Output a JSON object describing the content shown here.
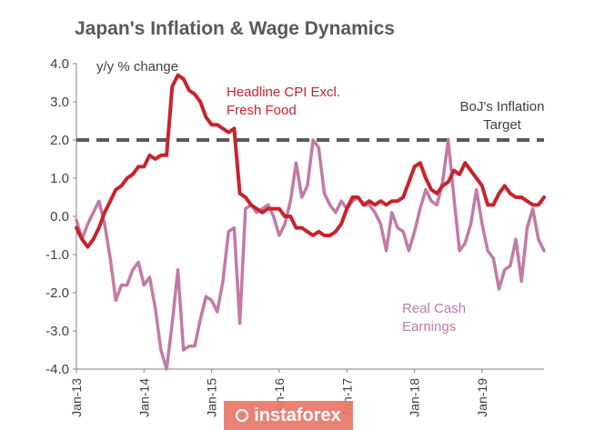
{
  "watermark": {
    "text": "instaforex",
    "icon": "instaforex-logo-icon"
  },
  "chart_data": {
    "type": "line",
    "title": "Japan's Inflation & Wage Dynamics",
    "ylabel": "y/y % change",
    "ylim": [
      -4.0,
      4.0
    ],
    "yticks": [
      -4.0,
      -3.0,
      -2.0,
      -1.0,
      0.0,
      1.0,
      2.0,
      3.0,
      4.0
    ],
    "ytick_labels": [
      "-4.0",
      "-3.0",
      "-2.0",
      "-1.0",
      "0.0",
      "1.0",
      "2.0",
      "3.0",
      "4.0"
    ],
    "xlim": [
      0,
      83
    ],
    "x_ticks": [
      {
        "label": "Jan-13",
        "index": 0
      },
      {
        "label": "Jan-14",
        "index": 12
      },
      {
        "label": "Jan-15",
        "index": 24
      },
      {
        "label": "Jan-16",
        "index": 36
      },
      {
        "label": "Jan-17",
        "index": 48
      },
      {
        "label": "Jan-18",
        "index": 60
      },
      {
        "label": "Jan-19",
        "index": 72
      }
    ],
    "reference_lines": [
      {
        "name": "BoJ's Inflation Target",
        "value": 2.0,
        "color": "#595959",
        "style": "dashed"
      }
    ],
    "annotations": [
      {
        "text": "BoJ's Inflation",
        "for": "BoJ's Inflation Target"
      },
      {
        "text": "Target",
        "for": "BoJ's Inflation Target"
      },
      {
        "text": "Headline CPI Excl.",
        "for": "Headline CPI Excl. Fresh Food"
      },
      {
        "text": "Fresh Food",
        "for": "Headline CPI Excl. Fresh Food"
      },
      {
        "text": "Real Cash",
        "for": "Real Cash Earnings"
      },
      {
        "text": "Earnings",
        "for": "Real Cash Earnings"
      }
    ],
    "series": [
      {
        "name": "Headline CPI Excl. Fresh Food",
        "color": "#c8232c",
        "values": [
          -0.3,
          -0.6,
          -0.8,
          -0.6,
          -0.3,
          0.1,
          0.4,
          0.7,
          0.8,
          1.0,
          1.1,
          1.3,
          1.3,
          1.6,
          1.5,
          1.6,
          1.6,
          3.4,
          3.7,
          3.6,
          3.3,
          3.2,
          3.0,
          2.6,
          2.4,
          2.4,
          2.3,
          2.2,
          2.3,
          0.6,
          0.5,
          0.3,
          0.2,
          0.1,
          0.2,
          0.2,
          0.2,
          0.0,
          0.0,
          -0.3,
          -0.3,
          -0.4,
          -0.5,
          -0.4,
          -0.5,
          -0.5,
          -0.4,
          -0.2,
          0.2,
          0.5,
          0.5,
          0.3,
          0.4,
          0.3,
          0.4,
          0.3,
          0.4,
          0.4,
          0.5,
          0.9,
          1.3,
          1.4,
          1.0,
          0.7,
          0.6,
          0.8,
          0.9,
          1.2,
          1.1,
          1.4,
          1.2,
          1.0,
          0.8,
          0.3,
          0.3,
          0.6,
          0.8,
          0.6,
          0.5,
          0.5,
          0.4,
          0.3,
          0.3,
          0.5
        ]
      },
      {
        "name": "Real Cash Earnings",
        "color": "#c27aa6",
        "values": [
          -0.1,
          -0.6,
          -0.2,
          0.1,
          0.4,
          -0.2,
          -1.1,
          -2.2,
          -1.8,
          -1.8,
          -1.4,
          -1.2,
          -1.8,
          -1.6,
          -2.4,
          -3.5,
          -4.0,
          -2.8,
          -1.4,
          -3.5,
          -3.4,
          -3.4,
          -2.7,
          -2.1,
          -2.2,
          -2.5,
          -1.7,
          -0.4,
          -0.3,
          -2.8,
          0.2,
          0.3,
          0.1,
          0.2,
          0.3,
          0.0,
          -0.5,
          -0.2,
          0.4,
          1.4,
          0.5,
          0.8,
          2.0,
          1.8,
          0.6,
          0.3,
          0.1,
          0.4,
          0.2,
          0.4,
          0.5,
          0.3,
          0.3,
          0.1,
          -0.2,
          -0.9,
          0.1,
          -0.3,
          -0.4,
          -0.9,
          -0.4,
          0.2,
          0.7,
          0.4,
          0.3,
          0.9,
          2.0,
          0.5,
          -0.9,
          -0.7,
          -0.2,
          0.7,
          -0.2,
          -0.9,
          -1.1,
          -1.9,
          -1.4,
          -1.3,
          -0.6,
          -1.7,
          -0.3,
          0.2,
          -0.6,
          -0.9
        ]
      }
    ]
  }
}
